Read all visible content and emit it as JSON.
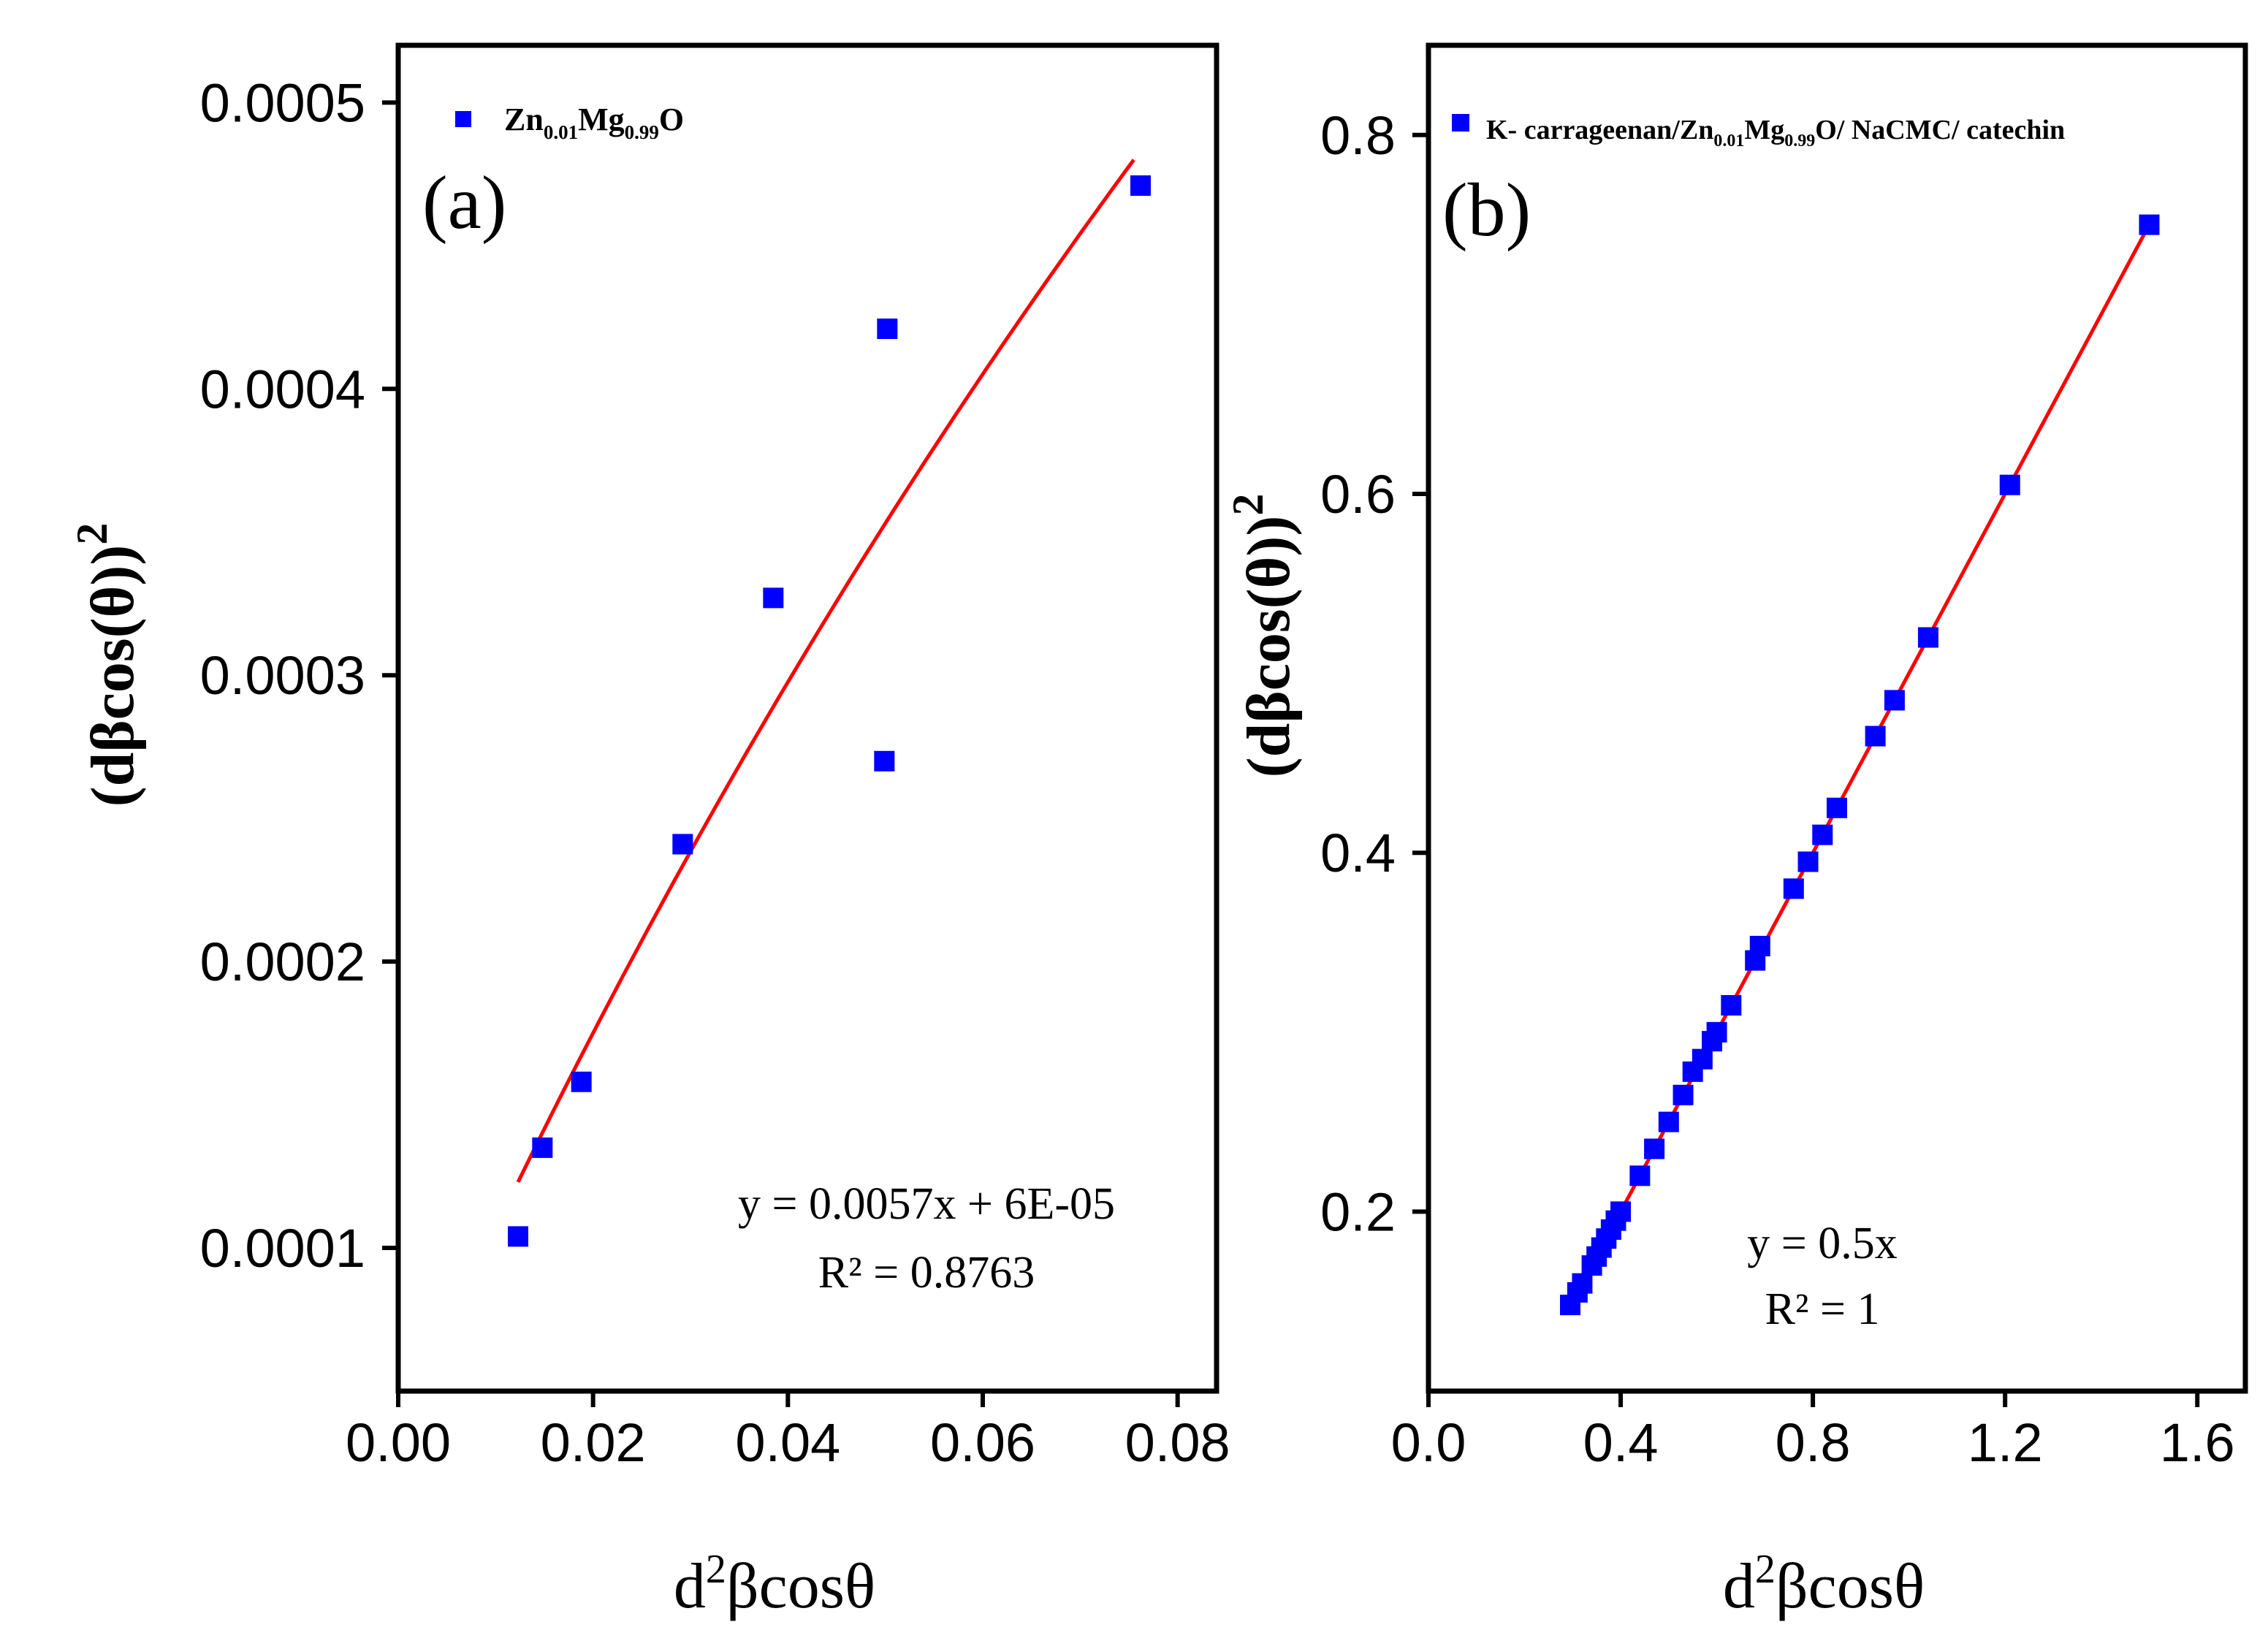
{
  "chart_data": [
    {
      "type": "scatter",
      "panel_label": "(a)",
      "legend": {
        "position": "top-left",
        "parts": [
          "Zn",
          "0.01",
          "Mg",
          "0.99",
          "O"
        ]
      },
      "xlabel": {
        "d": "d",
        "sup": "2",
        "rest": "βcosθ"
      },
      "ylabel": {
        "main": "(dβcos(θ))",
        "sup": "2"
      },
      "xlim": [
        0,
        0.084
      ],
      "ylim": [
        5e-05,
        0.00052
      ],
      "xticks": [
        0,
        0.02,
        0.04,
        0.06,
        0.08
      ],
      "xtick_labels": [
        "0.00",
        "0.02",
        "0.04",
        "0.06",
        "0.08"
      ],
      "yticks": [
        0.0001,
        0.0002,
        0.0003,
        0.0004,
        0.0005
      ],
      "ytick_labels": [
        "0.0001",
        "0.0002",
        "0.0003",
        "0.0004",
        "0.0005"
      ],
      "series": [
        {
          "name": "Zn0.01Mg0.99O",
          "color": "#0000ff",
          "marker": "square",
          "x": [
            0.0123,
            0.0148,
            0.0188,
            0.0292,
            0.0385,
            0.0499,
            0.0502,
            0.0762
          ],
          "y": [
            0.000104,
            0.000135,
            0.000158,
            0.000241,
            0.000327,
            0.00027,
            0.000421,
            0.000471
          ]
        }
      ],
      "fit": {
        "color": "#ff0000",
        "x": [
          0.0123,
          0.0755
        ],
        "y": [
          0.000123,
          0.00048
        ],
        "curved": true
      },
      "annotation": {
        "equation": "y = 0.0057x + 6E-05",
        "r2": "R² = 0.8763"
      }
    },
    {
      "type": "scatter",
      "panel_label": "(b)",
      "legend": {
        "position": "top-left",
        "parts": [
          "K- carrageenan/Zn",
          "0.01",
          "Mg",
          "0.99",
          "O/ NaCMC/ catechin"
        ]
      },
      "xlabel": {
        "d": "d",
        "sup": "2",
        "rest": "βcosθ"
      },
      "ylabel": {
        "main": "(dβcos(θ))",
        "sup": "2"
      },
      "xlim": [
        0,
        1.7
      ],
      "ylim": [
        0.1,
        0.85
      ],
      "xticks": [
        0,
        0.4,
        0.8,
        1.2,
        1.6
      ],
      "xtick_labels": [
        "0.0",
        "0.4",
        "0.8",
        "1.2",
        "1.6"
      ],
      "yticks": [
        0.2,
        0.4,
        0.6,
        0.8
      ],
      "ytick_labels": [
        "0.2",
        "0.4",
        "0.6",
        "0.8"
      ],
      "series": [
        {
          "name": "K- carrageenan/Zn0.01Mg0.99O/ NaCMC/ catechin",
          "color": "#0000ff",
          "marker": "square",
          "x": [
            0.295,
            0.31,
            0.32,
            0.34,
            0.35,
            0.36,
            0.37,
            0.38,
            0.39,
            0.4,
            0.44,
            0.47,
            0.5,
            0.53,
            0.55,
            0.57,
            0.59,
            0.6,
            0.63,
            0.68,
            0.69,
            0.76,
            0.79,
            0.82,
            0.85,
            0.93,
            0.97,
            1.04,
            1.21,
            1.5
          ],
          "y": [
            0.148,
            0.155,
            0.16,
            0.17,
            0.175,
            0.18,
            0.185,
            0.19,
            0.195,
            0.2,
            0.22,
            0.235,
            0.25,
            0.265,
            0.278,
            0.285,
            0.295,
            0.3,
            0.315,
            0.34,
            0.348,
            0.38,
            0.395,
            0.41,
            0.425,
            0.465,
            0.485,
            0.52,
            0.605,
            0.75
          ]
        }
      ],
      "fit": {
        "color": "#ff0000",
        "x": [
          0.29,
          1.5
        ],
        "y": [
          0.145,
          0.75
        ],
        "curved": false
      },
      "annotation": {
        "equation": "y = 0.5x",
        "r2": "R² = 1"
      }
    }
  ]
}
